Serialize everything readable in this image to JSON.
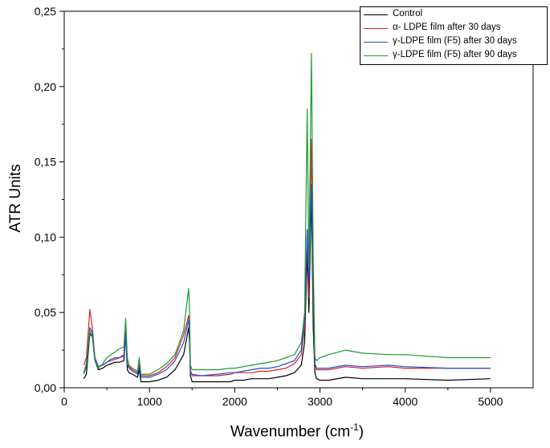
{
  "chart_data": {
    "type": "line",
    "title": "",
    "xlabel": "Wavenumber (cm",
    "xlabel_sup": "-1",
    "xlabel_suffix": ")",
    "ylabel": "ATR Units",
    "xlim": [
      0,
      5500
    ],
    "ylim": [
      0,
      0.25
    ],
    "xticks": [
      0,
      1000,
      2000,
      3000,
      4000,
      5000
    ],
    "yticks": [
      0.0,
      0.05,
      0.1,
      0.15,
      0.2,
      0.25
    ],
    "ytick_labels": [
      "0,00",
      "0,05",
      "0,10",
      "0,15",
      "0,20",
      "0,25"
    ],
    "grid": false,
    "legend_position": "top-right",
    "x": [
      230,
      260,
      300,
      330,
      360,
      400,
      450,
      500,
      550,
      600,
      650,
      700,
      720,
      740,
      760,
      800,
      860,
      880,
      900,
      1000,
      1100,
      1200,
      1300,
      1400,
      1460,
      1470,
      1480,
      1500,
      1600,
      1800,
      1950,
      2000,
      2100,
      2200,
      2300,
      2400,
      2500,
      2600,
      2700,
      2780,
      2820,
      2850,
      2870,
      2900,
      2920,
      2940,
      2960,
      3000,
      3100,
      3300,
      3500,
      3800,
      4000,
      4500,
      5000
    ],
    "series": [
      {
        "name": "Control",
        "color": "#000000",
        "values": [
          0.006,
          0.009,
          0.036,
          0.034,
          0.018,
          0.012,
          0.013,
          0.015,
          0.016,
          0.017,
          0.017,
          0.018,
          0.035,
          0.012,
          0.01,
          0.009,
          0.007,
          0.012,
          0.004,
          0.004,
          0.005,
          0.007,
          0.012,
          0.022,
          0.04,
          0.03,
          0.008,
          0.004,
          0.004,
          0.004,
          0.004,
          0.005,
          0.005,
          0.006,
          0.006,
          0.006,
          0.007,
          0.008,
          0.01,
          0.015,
          0.03,
          0.09,
          0.05,
          0.13,
          0.04,
          0.01,
          0.006,
          0.005,
          0.005,
          0.007,
          0.006,
          0.006,
          0.006,
          0.005,
          0.006
        ]
      },
      {
        "name": "α- LDPE film after 30 days",
        "color": "#e02020",
        "values": [
          0.015,
          0.02,
          0.052,
          0.04,
          0.02,
          0.014,
          0.015,
          0.017,
          0.018,
          0.019,
          0.02,
          0.022,
          0.038,
          0.016,
          0.014,
          0.012,
          0.01,
          0.016,
          0.008,
          0.008,
          0.01,
          0.014,
          0.02,
          0.035,
          0.048,
          0.04,
          0.012,
          0.008,
          0.008,
          0.008,
          0.009,
          0.01,
          0.01,
          0.01,
          0.011,
          0.011,
          0.012,
          0.013,
          0.016,
          0.022,
          0.04,
          0.1,
          0.06,
          0.165,
          0.06,
          0.016,
          0.012,
          0.012,
          0.012,
          0.014,
          0.013,
          0.014,
          0.013,
          0.013,
          0.013
        ]
      },
      {
        "name": "γ-LDPE film (F5) after 30 days",
        "color": "#1f4fd6",
        "values": [
          0.01,
          0.016,
          0.04,
          0.037,
          0.02,
          0.014,
          0.015,
          0.017,
          0.019,
          0.02,
          0.02,
          0.021,
          0.036,
          0.015,
          0.013,
          0.011,
          0.009,
          0.014,
          0.007,
          0.007,
          0.009,
          0.012,
          0.018,
          0.03,
          0.045,
          0.035,
          0.01,
          0.009,
          0.008,
          0.009,
          0.01,
          0.01,
          0.011,
          0.012,
          0.013,
          0.013,
          0.014,
          0.016,
          0.018,
          0.025,
          0.045,
          0.105,
          0.07,
          0.135,
          0.07,
          0.016,
          0.013,
          0.013,
          0.013,
          0.015,
          0.014,
          0.015,
          0.014,
          0.013,
          0.013
        ]
      },
      {
        "name": "γ-LDPE film (F5) after 90 days",
        "color": "#1e9a35",
        "values": [
          0.009,
          0.014,
          0.038,
          0.035,
          0.018,
          0.013,
          0.016,
          0.02,
          0.022,
          0.024,
          0.026,
          0.027,
          0.046,
          0.02,
          0.015,
          0.013,
          0.011,
          0.02,
          0.009,
          0.009,
          0.012,
          0.016,
          0.022,
          0.038,
          0.066,
          0.05,
          0.015,
          0.012,
          0.012,
          0.012,
          0.013,
          0.013,
          0.014,
          0.015,
          0.016,
          0.017,
          0.018,
          0.02,
          0.022,
          0.03,
          0.05,
          0.185,
          0.08,
          0.222,
          0.085,
          0.02,
          0.018,
          0.02,
          0.022,
          0.025,
          0.023,
          0.022,
          0.022,
          0.02,
          0.02
        ]
      }
    ]
  }
}
